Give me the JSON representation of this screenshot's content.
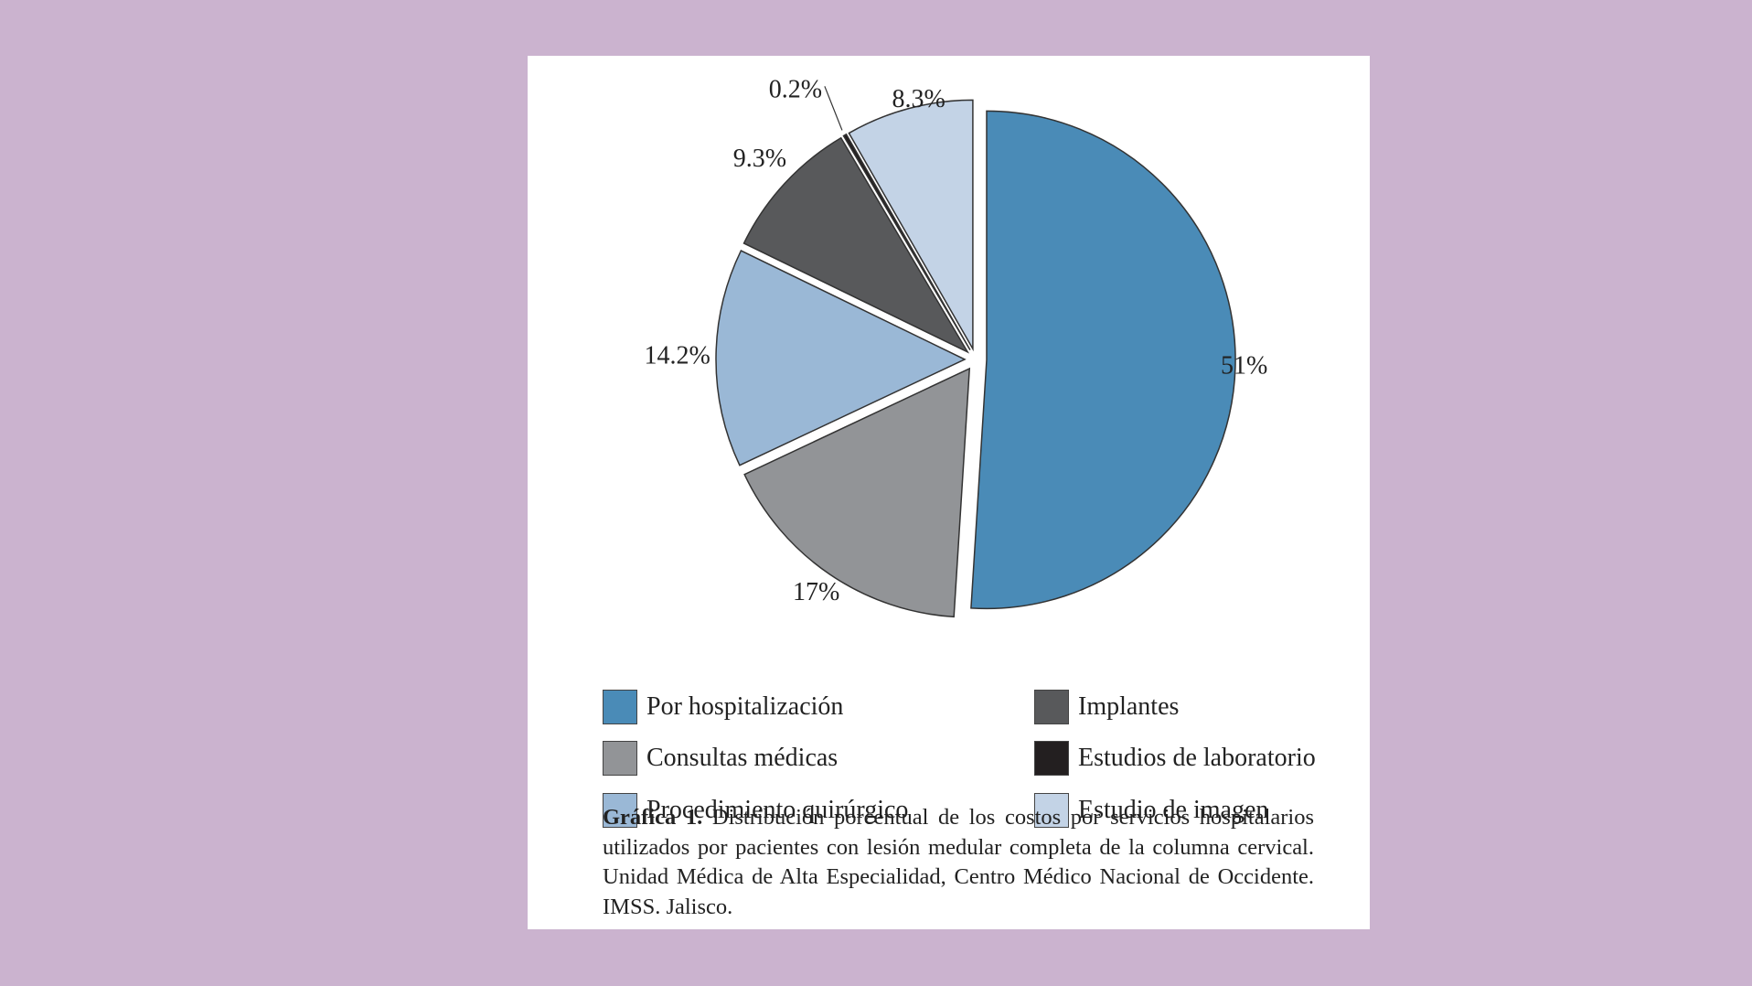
{
  "chart_data": {
    "type": "pie",
    "slices": [
      {
        "name": "Por hospitalización",
        "value": 51,
        "label": "51%",
        "color": "#4a8bb7"
      },
      {
        "name": "Consultas médicas",
        "value": 17,
        "label": "17%",
        "color": "#929497"
      },
      {
        "name": "Procedimiento quirúrgico",
        "value": 14.2,
        "label": "14.2%",
        "color": "#9ab8d6"
      },
      {
        "name": "Implantes",
        "value": 9.3,
        "label": "9.3%",
        "color": "#58595b"
      },
      {
        "name": "Estudios de laboratorio",
        "value": 0.2,
        "label": "0.2%",
        "color": "#231f20"
      },
      {
        "name": "Estudio de imagen",
        "value": 8.3,
        "label": "8.3%",
        "color": "#c3d3e6"
      }
    ],
    "exploded": true,
    "legend_position": "bottom",
    "legend_columns": 2
  },
  "legend": {
    "items": [
      {
        "label": "Por hospitalización",
        "color": "#4a8bb7"
      },
      {
        "label": "Implantes",
        "color": "#58595b"
      },
      {
        "label": "Consultas médicas",
        "color": "#929497"
      },
      {
        "label": "Estudios de laboratorio",
        "color": "#231f20"
      },
      {
        "label": "Procedimiento quirúrgico",
        "color": "#9ab8d6"
      },
      {
        "label": "Estudio de imagen",
        "color": "#c3d3e6"
      }
    ]
  },
  "caption": {
    "lead": "Gráfica 1.",
    "text": "Distribución porcentual de los costos por servicios hospitalarios utilizados por pacientes con lesión medular completa de la columna cervical. Unidad Médica de Alta Especialidad, Centro Médico Nacional de Occidente. IMSS. Jalisco."
  },
  "colors": {
    "background": "#cbb3cf",
    "card": "#ffffff"
  }
}
